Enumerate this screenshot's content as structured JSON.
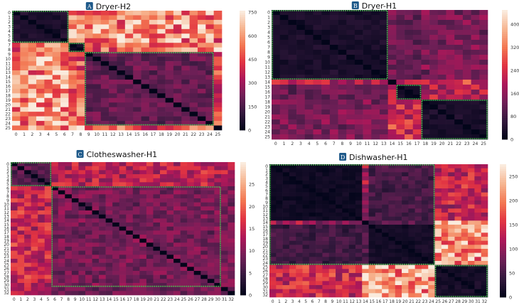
{
  "colormap": [
    "#03051a",
    "#35193e",
    "#701f57",
    "#ad1759",
    "#e13342",
    "#f37651",
    "#f6b48f",
    "#faebdd"
  ],
  "highlight_color": "#4caf50",
  "badge_color": "#1f5a8a",
  "chart_data": [
    {
      "type": "heatmap",
      "badge": "A",
      "title": "Dryer-H2",
      "size": 26,
      "vmin": 0,
      "vmax": 760,
      "colorbar_ticks": [
        "0",
        "150",
        "300",
        "450",
        "600",
        "750"
      ],
      "groups": [
        [
          0,
          6
        ],
        [
          7,
          8
        ],
        [
          9,
          24
        ],
        [
          25,
          25
        ]
      ],
      "block_means": [
        [
          60,
          550,
          580,
          560
        ],
        [
          500,
          50,
          520,
          650
        ],
        [
          600,
          500,
          200,
          420
        ],
        [
          600,
          700,
          480,
          0
        ]
      ],
      "highlighted_clusters": [
        [
          0,
          6
        ],
        [
          7,
          8
        ],
        [
          9,
          24
        ]
      ]
    },
    {
      "type": "heatmap",
      "badge": "B",
      "title": "Dryer-H1",
      "size": 26,
      "vmin": 0,
      "vmax": 450,
      "colorbar_ticks": [
        "0",
        "80",
        "160",
        "240",
        "320",
        "400"
      ],
      "groups": [
        [
          0,
          13
        ],
        [
          14,
          14
        ],
        [
          15,
          17
        ],
        [
          18,
          25
        ]
      ],
      "block_means": [
        [
          30,
          130,
          110,
          140
        ],
        [
          200,
          0,
          200,
          250
        ],
        [
          120,
          200,
          20,
          200
        ],
        [
          140,
          260,
          230,
          30
        ]
      ],
      "highlighted_clusters": [
        [
          0,
          13
        ],
        [
          15,
          17
        ],
        [
          18,
          25
        ]
      ]
    },
    {
      "type": "heatmap",
      "badge": "C",
      "title": "Clotheswasher-H1",
      "size": 33,
      "vmin": 0,
      "vmax": 30,
      "colorbar_ticks": [
        "0",
        "5",
        "10",
        "15",
        "20",
        "25"
      ],
      "groups": [
        [
          0,
          5
        ],
        [
          6,
          30
        ],
        [
          31,
          32
        ]
      ],
      "block_means": [
        [
          7,
          14,
          14
        ],
        [
          15,
          9,
          9
        ],
        [
          14,
          8,
          8
        ]
      ],
      "highlighted_clusters": [
        [
          0,
          5
        ],
        [
          6,
          30
        ]
      ]
    },
    {
      "type": "heatmap",
      "badge": "D",
      "title": "Dishwasher-H1",
      "size": 33,
      "vmin": 0,
      "vmax": 275,
      "colorbar_ticks": [
        "0",
        "50",
        "100",
        "150",
        "200",
        "250"
      ],
      "groups": [
        [
          0,
          13
        ],
        [
          14,
          14
        ],
        [
          15,
          24
        ],
        [
          25,
          32
        ]
      ],
      "block_means": [
        [
          10,
          110,
          50,
          130
        ],
        [
          110,
          0,
          60,
          260
        ],
        [
          45,
          60,
          15,
          210
        ],
        [
          140,
          265,
          220,
          15
        ]
      ],
      "highlighted_clusters": [
        [
          0,
          24
        ],
        [
          25,
          32
        ]
      ]
    }
  ]
}
